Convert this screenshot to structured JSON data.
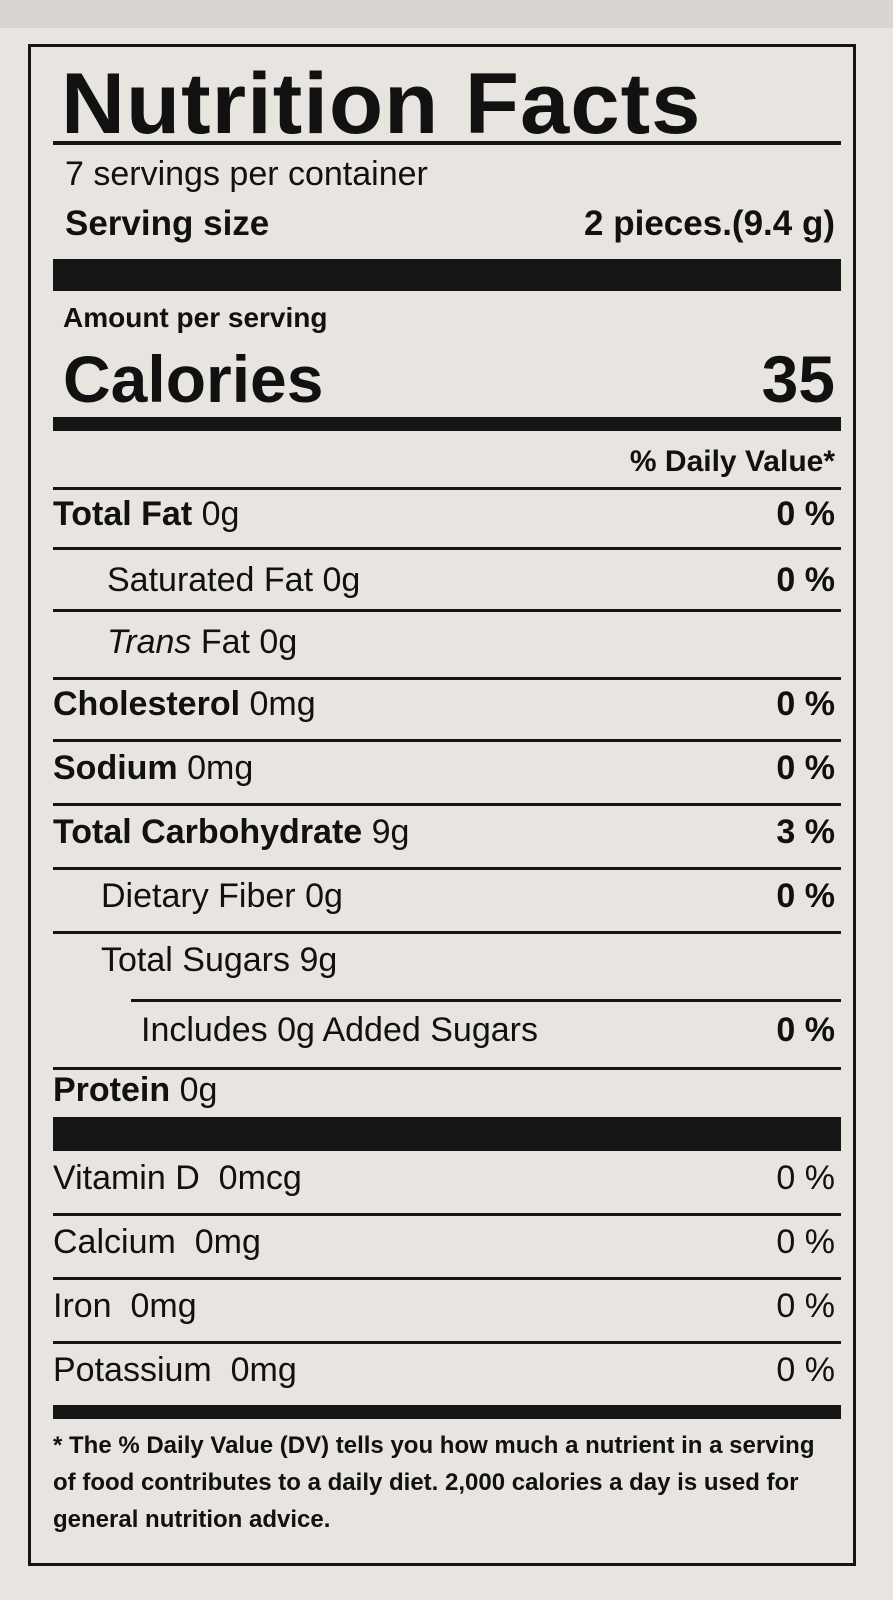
{
  "label": {
    "title": "Nutrition Facts",
    "servings_per_container": "7 servings per container",
    "serving_size_label": "Serving size",
    "serving_size_value": "2 pieces.(9.4 g)",
    "amount_per_serving": "Amount per serving",
    "calories_label": "Calories",
    "calories_value": "35",
    "daily_value_header": "% Daily Value*",
    "nutrients": [
      {
        "name": "Total Fat",
        "amount": "0g",
        "dv": "0 %"
      },
      {
        "name": "Saturated Fat",
        "amount": "0g",
        "dv": "0 %"
      },
      {
        "name": "Trans",
        "name2": "Fat",
        "amount": "0g"
      },
      {
        "name": "Cholesterol",
        "amount": "0mg",
        "dv": "0 %"
      },
      {
        "name": "Sodium",
        "amount": "0mg",
        "dv": "0 %"
      },
      {
        "name": "Total Carbohydrate",
        "amount": "9g",
        "dv": "3 %"
      },
      {
        "name": "Dietary Fiber",
        "amount": "0g",
        "dv": "0 %"
      },
      {
        "name": "Total Sugars",
        "amount": "9g"
      },
      {
        "name": "Includes 0g Added Sugars",
        "dv": "0 %"
      },
      {
        "name": "Protein",
        "amount": "0g"
      }
    ],
    "vitamins": [
      {
        "name": "Vitamin D",
        "amount": "0mcg",
        "dv": "0 %"
      },
      {
        "name": "Calcium",
        "amount": "0mg",
        "dv": "0 %"
      },
      {
        "name": "Iron",
        "amount": "0mg",
        "dv": "0 %"
      },
      {
        "name": "Potassium",
        "amount": "0mg",
        "dv": "0 %"
      }
    ],
    "footnote": "* The % Daily Value (DV) tells you how much a nutrient in a serving of food contributes to a daily diet. 2,000 calories a day is used for general nutrition advice."
  }
}
